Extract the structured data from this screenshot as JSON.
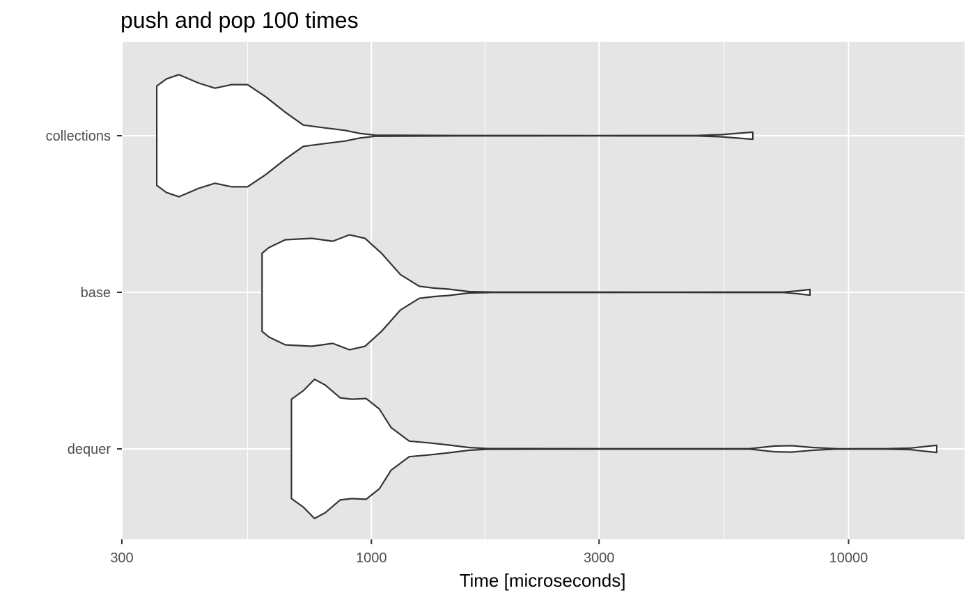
{
  "chart_data": {
    "type": "violin",
    "title": "push and pop 100 times",
    "xlabel": "Time [microseconds]",
    "ylabel": "",
    "x_scale": "log10",
    "xlim": [
      300,
      17500
    ],
    "x_ticks": [
      300,
      1000,
      3000,
      10000
    ],
    "x_tick_labels": [
      "300",
      "1000",
      "3000",
      "10000"
    ],
    "x_minor_ticks": [
      550,
      1730,
      5480
    ],
    "categories": [
      "collections",
      "base",
      "dequer"
    ],
    "grid": true,
    "colors": {
      "panel": "#e5e5e5",
      "grid": "#ffffff",
      "violin_fill": "#ffffff",
      "violin_outline": "#333333",
      "tick_label": "#4d4d4d"
    },
    "series": [
      {
        "name": "collections",
        "min": 355,
        "max": 6300,
        "density_profile": [
          [
            355,
            0.7
          ],
          [
            372,
            0.8
          ],
          [
            395,
            0.86
          ],
          [
            435,
            0.74
          ],
          [
            470,
            0.67
          ],
          [
            510,
            0.72
          ],
          [
            550,
            0.72
          ],
          [
            600,
            0.55
          ],
          [
            660,
            0.33
          ],
          [
            720,
            0.15
          ],
          [
            800,
            0.11
          ],
          [
            880,
            0.075
          ],
          [
            950,
            0.03
          ],
          [
            1020,
            0.008
          ],
          [
            1500,
            0.003
          ],
          [
            3000,
            0.002
          ],
          [
            4800,
            0.003
          ],
          [
            5400,
            0.015
          ],
          [
            6300,
            0.05
          ]
        ]
      },
      {
        "name": "base",
        "min": 590,
        "max": 8300,
        "density_profile": [
          [
            590,
            0.55
          ],
          [
            610,
            0.63
          ],
          [
            660,
            0.74
          ],
          [
            750,
            0.76
          ],
          [
            830,
            0.72
          ],
          [
            900,
            0.81
          ],
          [
            970,
            0.76
          ],
          [
            1050,
            0.55
          ],
          [
            1150,
            0.25
          ],
          [
            1260,
            0.085
          ],
          [
            1350,
            0.06
          ],
          [
            1450,
            0.045
          ],
          [
            1600,
            0.01
          ],
          [
            1800,
            0.003
          ],
          [
            4000,
            0.002
          ],
          [
            7300,
            0.003
          ],
          [
            7800,
            0.02
          ],
          [
            8300,
            0.04
          ]
        ]
      },
      {
        "name": "dequer",
        "min": 680,
        "max": 15300,
        "density_profile": [
          [
            680,
            0.7
          ],
          [
            720,
            0.82
          ],
          [
            760,
            0.98
          ],
          [
            800,
            0.9
          ],
          [
            860,
            0.72
          ],
          [
            910,
            0.7
          ],
          [
            975,
            0.71
          ],
          [
            1040,
            0.56
          ],
          [
            1100,
            0.3
          ],
          [
            1200,
            0.11
          ],
          [
            1320,
            0.085
          ],
          [
            1450,
            0.055
          ],
          [
            1600,
            0.02
          ],
          [
            1750,
            0.005
          ],
          [
            3000,
            0.003
          ],
          [
            6200,
            0.003
          ],
          [
            7000,
            0.04
          ],
          [
            7600,
            0.045
          ],
          [
            8400,
            0.02
          ],
          [
            9500,
            0.002
          ],
          [
            12000,
            0.003
          ],
          [
            13500,
            0.012
          ],
          [
            15300,
            0.05
          ]
        ]
      }
    ]
  }
}
